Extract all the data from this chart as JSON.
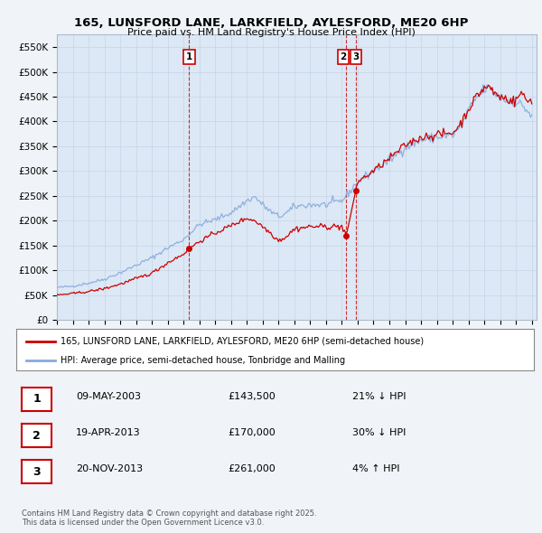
{
  "title": "165, LUNSFORD LANE, LARKFIELD, AYLESFORD, ME20 6HP",
  "subtitle": "Price paid vs. HM Land Registry's House Price Index (HPI)",
  "hpi_label": "HPI: Average price, semi-detached house, Tonbridge and Malling",
  "property_label": "165, LUNSFORD LANE, LARKFIELD, AYLESFORD, ME20 6HP (semi-detached house)",
  "property_color": "#cc0000",
  "hpi_color": "#88aadd",
  "background_color": "#f0f4f8",
  "plot_bg_color": "#dce8f5",
  "ylim": [
    0,
    575000
  ],
  "sale_dates_decimal": [
    2003.35,
    2013.28,
    2013.88
  ],
  "sale_prices": [
    143500,
    170000,
    261000
  ],
  "sale_labels": [
    "1",
    "2",
    "3"
  ],
  "table_rows": [
    {
      "num": "1",
      "date": "09-MAY-2003",
      "price": "£143,500",
      "note": "21% ↓ HPI"
    },
    {
      "num": "2",
      "date": "19-APR-2013",
      "price": "£170,000",
      "note": "30% ↓ HPI"
    },
    {
      "num": "3",
      "date": "20-NOV-2013",
      "price": "£261,000",
      "note": "4% ↑ HPI"
    }
  ],
  "footer": "Contains HM Land Registry data © Crown copyright and database right 2025.\nThis data is licensed under the Open Government Licence v3.0."
}
